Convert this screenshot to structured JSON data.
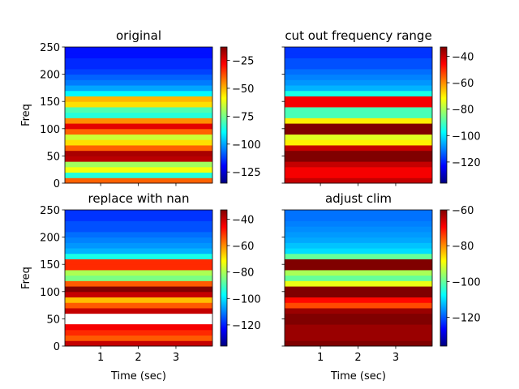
{
  "chart_data": [
    {
      "type": "heatmap",
      "title": "original",
      "ylabel": "Freq",
      "xlim": [
        0.05,
        3.97
      ],
      "ylim": [
        0,
        250
      ],
      "xticks": [
        1,
        2,
        3
      ],
      "yticks": [
        0,
        50,
        100,
        150,
        200,
        250
      ],
      "show_xticklabels": false,
      "show_yticklabels": true,
      "clim": [
        -135,
        -13
      ],
      "cticks": [
        {
          "value": -25,
          "label": "−25"
        },
        {
          "value": -50,
          "label": "−50"
        },
        {
          "value": -75,
          "label": "−75"
        },
        {
          "value": -100,
          "label": "−100"
        },
        {
          "value": -125,
          "label": "−125"
        }
      ],
      "freq_edges": [
        0,
        10,
        20,
        30,
        40,
        50,
        60,
        70,
        80,
        90,
        100,
        110,
        120,
        130,
        140,
        150,
        160,
        170,
        180,
        190,
        200,
        210,
        220,
        230,
        240,
        250
      ],
      "values": [
        -40,
        -85,
        -60,
        -70,
        -20,
        -18,
        -40,
        -55,
        -65,
        -40,
        -25,
        -45,
        -85,
        -80,
        -55,
        -50,
        -90,
        -100,
        -105,
        -108,
        -112,
        -115,
        -115,
        -118,
        -118
      ]
    },
    {
      "type": "heatmap",
      "title": "cut out frequency range",
      "xlim": [
        0.05,
        3.97
      ],
      "ylim": [
        0,
        250
      ],
      "xticks": [
        1,
        2,
        3
      ],
      "yticks": [
        0,
        50,
        100,
        150,
        200,
        250
      ],
      "show_xticklabels": false,
      "show_yticklabels": false,
      "clim": [
        -136,
        -33
      ],
      "cticks": [
        {
          "value": -40,
          "label": "−40"
        },
        {
          "value": -60,
          "label": "−60"
        },
        {
          "value": -80,
          "label": "−80"
        },
        {
          "value": -100,
          "label": "−100"
        },
        {
          "value": -120,
          "label": "−120"
        }
      ],
      "freq_edges": [
        0,
        10,
        20,
        30,
        40,
        50,
        60,
        70,
        80,
        90,
        100,
        110,
        120,
        130,
        140,
        150,
        160,
        170,
        180,
        190,
        200,
        210,
        220,
        230,
        240,
        250
      ],
      "values": [
        -40,
        -45,
        -45,
        -40,
        -20,
        -20,
        -40,
        -70,
        -75,
        -30,
        -30,
        -70,
        -90,
        -90,
        -45,
        -45,
        -95,
        -105,
        -108,
        -110,
        -112,
        -115,
        -115,
        -118,
        -118
      ]
    },
    {
      "type": "heatmap",
      "title": "replace with nan",
      "ylabel": "Freq",
      "xlabel": "Time (sec)",
      "xlim": [
        0.05,
        3.97
      ],
      "ylim": [
        0,
        250
      ],
      "xticks": [
        1,
        2,
        3
      ],
      "yticks": [
        0,
        50,
        100,
        150,
        200,
        250
      ],
      "show_xticklabels": true,
      "show_yticklabels": true,
      "clim": [
        -136,
        -33
      ],
      "cticks": [
        {
          "value": -40,
          "label": "−40"
        },
        {
          "value": -60,
          "label": "−60"
        },
        {
          "value": -80,
          "label": "−80"
        },
        {
          "value": -100,
          "label": "−100"
        },
        {
          "value": -120,
          "label": "−120"
        }
      ],
      "freq_edges": [
        0,
        10,
        20,
        30,
        40,
        50,
        60,
        70,
        80,
        90,
        100,
        110,
        120,
        130,
        140,
        150,
        160,
        170,
        180,
        190,
        200,
        210,
        220,
        230,
        240,
        250
      ],
      "values": [
        -40,
        -55,
        -50,
        -45,
        null,
        null,
        -40,
        -55,
        -65,
        -40,
        -30,
        -55,
        -85,
        -80,
        -50,
        -50,
        -95,
        -105,
        -108,
        -110,
        -112,
        -115,
        -115,
        -118,
        -118
      ]
    },
    {
      "type": "heatmap",
      "title": "adjust clim",
      "xlabel": "Time (sec)",
      "xlim": [
        0.05,
        3.97
      ],
      "ylim": [
        0,
        250
      ],
      "xticks": [
        1,
        2,
        3
      ],
      "yticks": [
        0,
        50,
        100,
        150,
        200,
        250
      ],
      "show_xticklabels": true,
      "show_yticklabels": false,
      "clim": [
        -136,
        -60
      ],
      "cticks": [
        {
          "value": -60,
          "label": "−60"
        },
        {
          "value": -80,
          "label": "−80"
        },
        {
          "value": -100,
          "label": "−100"
        },
        {
          "value": -120,
          "label": "−120"
        }
      ],
      "freq_edges": [
        0,
        10,
        20,
        30,
        40,
        50,
        60,
        70,
        80,
        90,
        100,
        110,
        120,
        130,
        140,
        150,
        160,
        170,
        180,
        190,
        200,
        210,
        220,
        230,
        240,
        250
      ],
      "values": [
        -60,
        -62,
        -62,
        -62,
        -60,
        -60,
        -62,
        -75,
        -70,
        -60,
        -60,
        -90,
        -100,
        -95,
        -60,
        -60,
        -100,
        -110,
        -112,
        -114,
        -115,
        -116,
        -117,
        -118,
        -118
      ]
    }
  ]
}
